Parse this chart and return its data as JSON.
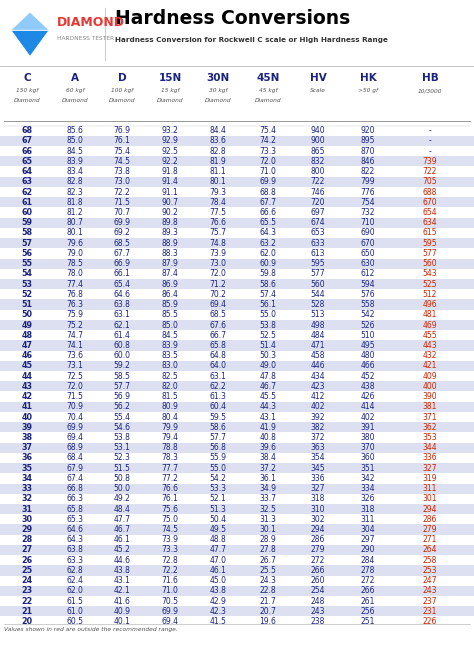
{
  "title": "Hardness Conversions",
  "subtitle": "Hardness Conversion for Rockwell C scale or High Hardness Range",
  "col_headers": [
    "C",
    "A",
    "D",
    "15N",
    "30N",
    "45N",
    "HV",
    "HK",
    "HB"
  ],
  "col_subheaders": [
    "150 kgf\nDiamond",
    "60 kgf\nDiamond",
    "100 kgf\nDiamond",
    "15 kgf\nDiamond",
    "30 kgf\nDiamond",
    "45 kgf\nDiamond",
    "Scale",
    ">50 gf",
    "10/3000"
  ],
  "rows": [
    [
      68,
      85.6,
      76.9,
      93.2,
      84.4,
      75.4,
      940,
      920,
      "-"
    ],
    [
      67,
      85.0,
      76.1,
      92.9,
      83.6,
      74.2,
      900,
      895,
      "-"
    ],
    [
      66,
      84.5,
      75.4,
      92.5,
      82.8,
      73.3,
      865,
      870,
      "-"
    ],
    [
      65,
      83.9,
      74.5,
      92.2,
      81.9,
      72.0,
      832,
      846,
      "739"
    ],
    [
      64,
      83.4,
      73.8,
      91.8,
      81.1,
      71.0,
      800,
      822,
      "722"
    ],
    [
      63,
      82.8,
      73.0,
      91.4,
      80.1,
      69.9,
      722,
      799,
      "705"
    ],
    [
      62,
      82.3,
      72.2,
      91.1,
      79.3,
      68.8,
      746,
      776,
      "688"
    ],
    [
      61,
      81.8,
      71.5,
      90.7,
      78.4,
      67.7,
      720,
      754,
      "670"
    ],
    [
      60,
      81.2,
      70.7,
      90.2,
      77.5,
      66.6,
      697,
      732,
      "654"
    ],
    [
      59,
      80.7,
      69.9,
      89.8,
      76.6,
      65.5,
      674,
      710,
      "634"
    ],
    [
      58,
      80.1,
      69.2,
      89.3,
      75.7,
      64.3,
      653,
      690,
      "615"
    ],
    [
      57,
      79.6,
      68.5,
      88.9,
      74.8,
      63.2,
      633,
      670,
      "595"
    ],
    [
      56,
      79.0,
      67.7,
      88.3,
      73.9,
      62.0,
      613,
      650,
      "577"
    ],
    [
      55,
      78.5,
      66.9,
      87.9,
      73.0,
      60.9,
      595,
      630,
      "560"
    ],
    [
      54,
      78.0,
      66.1,
      87.4,
      72.0,
      59.8,
      577,
      612,
      "543"
    ],
    [
      53,
      77.4,
      65.4,
      86.9,
      71.2,
      58.6,
      560,
      594,
      "525"
    ],
    [
      52,
      76.8,
      64.6,
      86.4,
      70.2,
      57.4,
      544,
      576,
      "512"
    ],
    [
      51,
      76.3,
      63.8,
      85.9,
      69.4,
      56.1,
      528,
      558,
      "496"
    ],
    [
      50,
      75.9,
      63.1,
      85.5,
      68.5,
      55.0,
      513,
      542,
      "481"
    ],
    [
      49,
      75.2,
      62.1,
      85.0,
      67.6,
      53.8,
      498,
      526,
      "469"
    ],
    [
      48,
      74.7,
      61.4,
      84.5,
      66.7,
      52.5,
      484,
      510,
      "455"
    ],
    [
      47,
      74.1,
      60.8,
      83.9,
      65.8,
      51.4,
      471,
      495,
      "443"
    ],
    [
      46,
      73.6,
      60.0,
      83.5,
      64.8,
      50.3,
      458,
      480,
      "432"
    ],
    [
      45,
      73.1,
      59.2,
      83.0,
      64.0,
      49.0,
      446,
      466,
      "421"
    ],
    [
      44,
      72.5,
      58.5,
      82.5,
      63.1,
      47.8,
      434,
      452,
      "409"
    ],
    [
      43,
      72.0,
      57.7,
      82.0,
      62.2,
      46.7,
      423,
      438,
      "400"
    ],
    [
      42,
      71.5,
      56.9,
      81.5,
      61.3,
      45.5,
      412,
      426,
      "390"
    ],
    [
      41,
      70.9,
      56.2,
      80.9,
      60.4,
      44.3,
      402,
      414,
      "381"
    ],
    [
      40,
      70.4,
      55.4,
      80.4,
      59.5,
      43.1,
      392,
      402,
      "371"
    ],
    [
      39,
      69.9,
      54.6,
      79.9,
      58.6,
      41.9,
      382,
      391,
      "362"
    ],
    [
      38,
      69.4,
      53.8,
      79.4,
      57.7,
      40.8,
      372,
      380,
      "353"
    ],
    [
      37,
      68.9,
      53.1,
      78.8,
      56.8,
      39.6,
      363,
      370,
      "344"
    ],
    [
      36,
      68.4,
      52.3,
      78.3,
      55.9,
      38.4,
      354,
      360,
      "336"
    ],
    [
      35,
      67.9,
      51.5,
      77.7,
      55.0,
      37.2,
      345,
      351,
      "327"
    ],
    [
      34,
      67.4,
      50.8,
      77.2,
      54.2,
      36.1,
      336,
      342,
      "319"
    ],
    [
      33,
      66.8,
      50.0,
      76.6,
      53.3,
      34.9,
      327,
      334,
      "311"
    ],
    [
      32,
      66.3,
      49.2,
      76.1,
      52.1,
      33.7,
      318,
      326,
      "301"
    ],
    [
      31,
      65.8,
      48.4,
      75.6,
      51.3,
      32.5,
      310,
      318,
      "294"
    ],
    [
      30,
      65.3,
      47.7,
      75.0,
      50.4,
      31.3,
      302,
      311,
      "286"
    ],
    [
      29,
      64.6,
      46.7,
      74.5,
      49.5,
      30.1,
      294,
      304,
      "279"
    ],
    [
      28,
      64.3,
      46.1,
      73.9,
      48.8,
      28.9,
      286,
      297,
      "271"
    ],
    [
      27,
      63.8,
      45.2,
      73.3,
      47.7,
      27.8,
      279,
      290,
      "264"
    ],
    [
      26,
      63.3,
      44.6,
      72.8,
      47.0,
      26.7,
      272,
      284,
      "258"
    ],
    [
      25,
      62.8,
      43.8,
      72.2,
      46.1,
      25.5,
      266,
      278,
      "253"
    ],
    [
      24,
      62.4,
      43.1,
      71.6,
      45.0,
      24.3,
      260,
      272,
      "247"
    ],
    [
      23,
      62.0,
      42.1,
      71.0,
      43.8,
      22.8,
      254,
      266,
      "243"
    ],
    [
      22,
      61.5,
      41.6,
      70.5,
      42.9,
      21.7,
      248,
      261,
      "237"
    ],
    [
      21,
      61.0,
      40.9,
      69.9,
      42.3,
      20.7,
      243,
      256,
      "231"
    ],
    [
      20,
      60.5,
      40.1,
      69.4,
      41.5,
      19.6,
      238,
      251,
      "226"
    ]
  ],
  "shaded_c_vals": [
    67,
    65,
    63,
    61,
    59,
    57,
    55,
    53,
    51,
    49,
    47,
    45,
    43,
    41,
    39,
    37,
    35,
    33,
    31,
    29,
    27,
    25,
    23,
    21
  ],
  "red_hb_c_vals": [
    65,
    64,
    63,
    62,
    61,
    60,
    59,
    58,
    57,
    56,
    55,
    54,
    53,
    52,
    51,
    50,
    49,
    48,
    47,
    46,
    45,
    44,
    43,
    42,
    41,
    40,
    39,
    38,
    37,
    36,
    35,
    34,
    33,
    32,
    31,
    30,
    29,
    28,
    27,
    26,
    25,
    24,
    23,
    22,
    21,
    20
  ],
  "footer": "Values shown in red are outside the recommended range.",
  "shade_color": "#dde0f0",
  "text_color_main": "#1a237e",
  "text_color_red": "#cc2200",
  "title_color": "#000000",
  "header_text_color": "#1a237e",
  "subheader_text_color": "#555555",
  "diamond_blue_dark": "#1565c0",
  "diamond_blue_light": "#42a5f5",
  "diamond_blue_mid": "#1e88e5",
  "brand_red": "#e53935",
  "logo_label": "DIAMOND",
  "logo_sub": "HARDNESS TESTER"
}
